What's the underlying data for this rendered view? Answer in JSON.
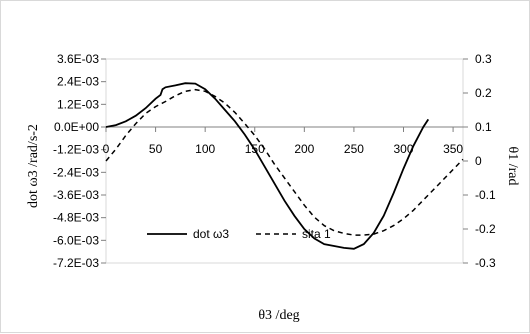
{
  "chart_data": {
    "type": "line",
    "xlabel": "θ3 /deg",
    "y1label": "dot ω3 /rad/s-2",
    "y2label": "θ1 /rad",
    "xlim": [
      0,
      360
    ],
    "x_ticks": [
      "0",
      "50",
      "100",
      "150",
      "200",
      "250",
      "300",
      "350"
    ],
    "y1lim": [
      -0.0072,
      0.0036
    ],
    "y1_ticks": [
      "3.6E-03",
      "2.4E-03",
      "1.2E-03",
      "0.0E+00",
      "-1.2E-03",
      "-2.4E-03",
      "-3.6E-03",
      "-4.8E-03",
      "-6.0E-03",
      "-7.2E-03"
    ],
    "y2lim": [
      -0.3,
      0.3
    ],
    "y2_ticks": [
      "0.3",
      "0.2",
      "0.1",
      "0",
      "-0.1",
      "-0.2",
      "-0.3"
    ],
    "grid": false,
    "legend_position": "bottom-left",
    "series": [
      {
        "name": "dot ω3",
        "axis": "left",
        "style": "solid",
        "x": [
          0,
          10,
          20,
          30,
          40,
          50,
          55,
          57,
          60,
          70,
          80,
          90,
          100,
          110,
          120,
          130,
          140,
          150,
          160,
          170,
          180,
          190,
          200,
          210,
          220,
          230,
          240,
          250,
          260,
          270,
          280,
          290,
          300,
          310,
          320,
          325
        ],
        "y": [
          0.0,
          0.0001,
          0.0003,
          0.0006,
          0.001,
          0.0015,
          0.0017,
          0.002,
          0.0021,
          0.0022,
          0.00232,
          0.0023,
          0.002,
          0.0015,
          0.0009,
          0.0003,
          -0.0004,
          -0.0012,
          -0.0021,
          -0.003,
          -0.0039,
          -0.0047,
          -0.0054,
          -0.0059,
          -0.0062,
          -0.0063,
          -0.0064,
          -0.00645,
          -0.0062,
          -0.0056,
          -0.0047,
          -0.0035,
          -0.0022,
          -0.001,
          0.0,
          0.0004
        ]
      },
      {
        "name": "sita 1",
        "axis": "right",
        "style": "dashed",
        "x": [
          0,
          10,
          20,
          30,
          40,
          50,
          60,
          70,
          80,
          90,
          100,
          110,
          120,
          130,
          140,
          150,
          160,
          170,
          180,
          190,
          200,
          210,
          220,
          230,
          240,
          250,
          260,
          270,
          280,
          290,
          300,
          310,
          320,
          330,
          340,
          350,
          360
        ],
        "y": [
          0.0,
          0.035,
          0.075,
          0.11,
          0.14,
          0.16,
          0.175,
          0.192,
          0.205,
          0.21,
          0.205,
          0.19,
          0.17,
          0.143,
          0.11,
          0.075,
          0.035,
          -0.01,
          -0.05,
          -0.09,
          -0.13,
          -0.165,
          -0.19,
          -0.205,
          -0.213,
          -0.218,
          -0.218,
          -0.215,
          -0.205,
          -0.19,
          -0.17,
          -0.145,
          -0.115,
          -0.085,
          -0.055,
          -0.025,
          0.005
        ]
      }
    ]
  }
}
